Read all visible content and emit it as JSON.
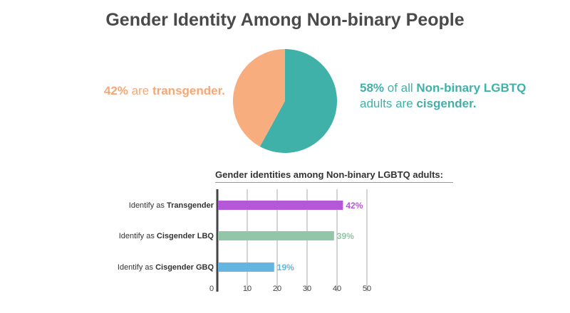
{
  "title": "Gender Identity Among Non-binary People",
  "callout_left": {
    "pct": "42%",
    "mid": " are ",
    "term": "transgender."
  },
  "callout_right": {
    "pct": "58%",
    "mid": " of all ",
    "group": "Non-binary LGBTQ",
    "line2": "adults are ",
    "term": "cisgender."
  },
  "colors": {
    "transgender_pie": "#f7ad7e",
    "cisgender_pie": "#3fb1a8",
    "bar_transgender": "#b458d8",
    "bar_cis_lbq": "#93c5a8",
    "bar_cis_gbq": "#64b5e0",
    "axis": "#444444",
    "grid": "#aaaaaa"
  },
  "chart_data": [
    {
      "type": "pie",
      "slices": [
        {
          "label": "transgender",
          "value": 42,
          "color": "#f7ad7e"
        },
        {
          "label": "cisgender",
          "value": 58,
          "color": "#3fb1a8"
        }
      ]
    },
    {
      "type": "bar",
      "orientation": "horizontal",
      "title": "Gender identities among Non-binary LGBTQ adults:",
      "categories": [
        {
          "prefix": "Identify as ",
          "bold": "Transgender"
        },
        {
          "prefix": "Identify as ",
          "bold": "Cisgender LBQ"
        },
        {
          "prefix": "Identify as ",
          "bold": "Cisgender GBQ"
        }
      ],
      "values": [
        42,
        39,
        19
      ],
      "value_labels": [
        "42%",
        "39%",
        "19%"
      ],
      "colors": [
        "#b458d8",
        "#93c5a8",
        "#64b5e0"
      ],
      "xlim": [
        0,
        50
      ],
      "xticks": [
        0,
        10,
        20,
        30,
        40,
        50
      ],
      "grid": true
    }
  ]
}
